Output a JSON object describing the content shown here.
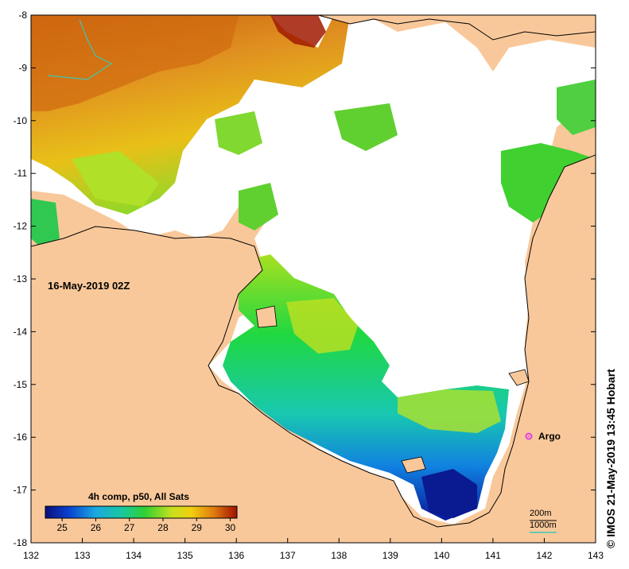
{
  "map": {
    "date": "16-May-2019 02Z",
    "colorbar_title": "4h comp, p50, All Sats",
    "colorbar_ticks": [
      "25",
      "26",
      "27",
      "28",
      "29",
      "30"
    ],
    "colorbar_range": [
      24.5,
      30.2
    ],
    "credit": "© IMOS 21-May-2019 13:45 Hobart",
    "argo_label": "Argo",
    "contour_200": "200m",
    "contour_1000": "1000m",
    "lon_ticks": [
      "132",
      "133",
      "134",
      "135",
      "136",
      "137",
      "138",
      "139",
      "140",
      "141",
      "142",
      "143"
    ],
    "lat_ticks": [
      "-8",
      "-9",
      "-10",
      "-11",
      "-12",
      "-13",
      "-14",
      "-15",
      "-16",
      "-17",
      "-18"
    ],
    "lon_range": [
      132,
      143
    ],
    "lat_range": [
      -18,
      -8
    ],
    "colors": {
      "land": "#f9c89a",
      "cloud": "#ffffff",
      "argo": "#e040e0",
      "contour_1000": "#3cc8b4",
      "coast": "#000000"
    }
  }
}
